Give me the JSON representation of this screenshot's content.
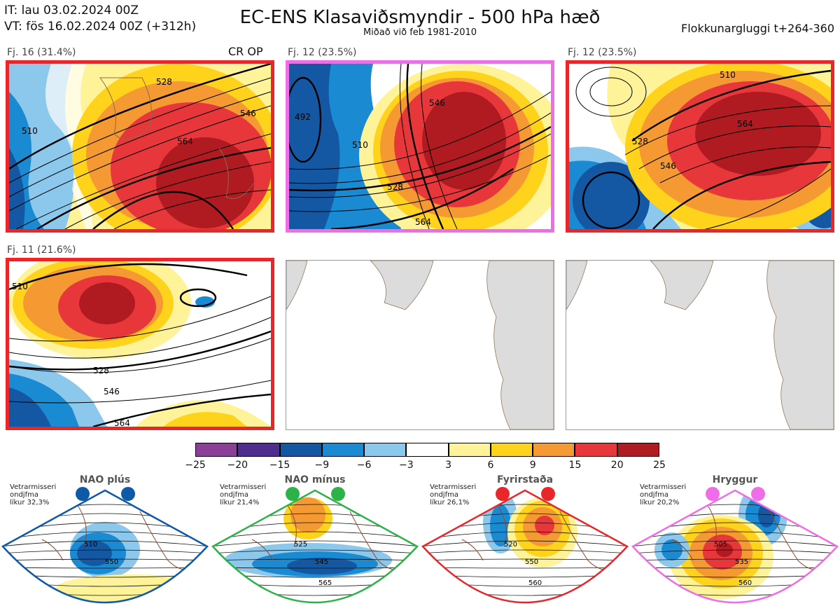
{
  "header": {
    "it": "IT: lau 03.02.2024 00Z",
    "vt": "VT: fös 16.02.2024 00Z  (+312h)",
    "title": "EC-ENS Klasaviðsmyndir - 500 hPa hæð",
    "subtitle": "Miðað við feb 1981-2010",
    "window": "Flokkunargluggi t+264-360",
    "crop": "CR OP"
  },
  "panels": [
    {
      "label": "Fj. 16 (31.4%)",
      "border": "#e8272b",
      "contours": [
        "510",
        "528",
        "546",
        "564"
      ]
    },
    {
      "label": "Fj. 12 (23.5%)",
      "border": "#ee6ee8",
      "contours": [
        "492",
        "510",
        "528",
        "546",
        "564"
      ]
    },
    {
      "label": "Fj. 12 (23.5%)",
      "border": "#e8272b",
      "contours": [
        "510",
        "528",
        "546",
        "564"
      ]
    },
    {
      "label": "Fj. 11 (21.6%)",
      "border": "#e8272b",
      "contours": [
        "510",
        "528",
        "546",
        "564"
      ]
    }
  ],
  "chart_data": {
    "type": "heatmap",
    "colorbar": {
      "ticks": [
        "−25",
        "−20",
        "−15",
        "−9",
        "−6",
        "−3",
        "3",
        "6",
        "9",
        "15",
        "20",
        "25"
      ],
      "colors": [
        "#8c3f97",
        "#4f2d8f",
        "#1458a4",
        "#1a8ad3",
        "#8cc7ec",
        "#ffffff",
        "#fff39a",
        "#ffd21c",
        "#f59a33",
        "#e8373b",
        "#b01a21"
      ]
    }
  },
  "regimes": [
    {
      "name": "NAO plús",
      "meta": [
        "Vetrarmisseri",
        "ondjfma",
        "líkur 32,3%"
      ],
      "color": "#0f5aa6",
      "contours": [
        "510",
        "550"
      ]
    },
    {
      "name": "NAO mínus",
      "meta": [
        "Vetrarmisseri",
        "ondjfma",
        "líkur 21,4%"
      ],
      "color": "#2db24a",
      "contours": [
        "525",
        "545",
        "565"
      ]
    },
    {
      "name": "Fyrirstaða",
      "meta": [
        "Vetrarmisseri",
        "ondjfma",
        "líkur 26,1%"
      ],
      "color": "#e8272b",
      "contours": [
        "520",
        "550",
        "560"
      ]
    },
    {
      "name": "Hryggur",
      "meta": [
        "Vetrarmisseri",
        "ondjfma",
        "líkur 20,2%"
      ],
      "color": "#ee6ee8",
      "contours": [
        "505",
        "535",
        "560"
      ]
    }
  ]
}
